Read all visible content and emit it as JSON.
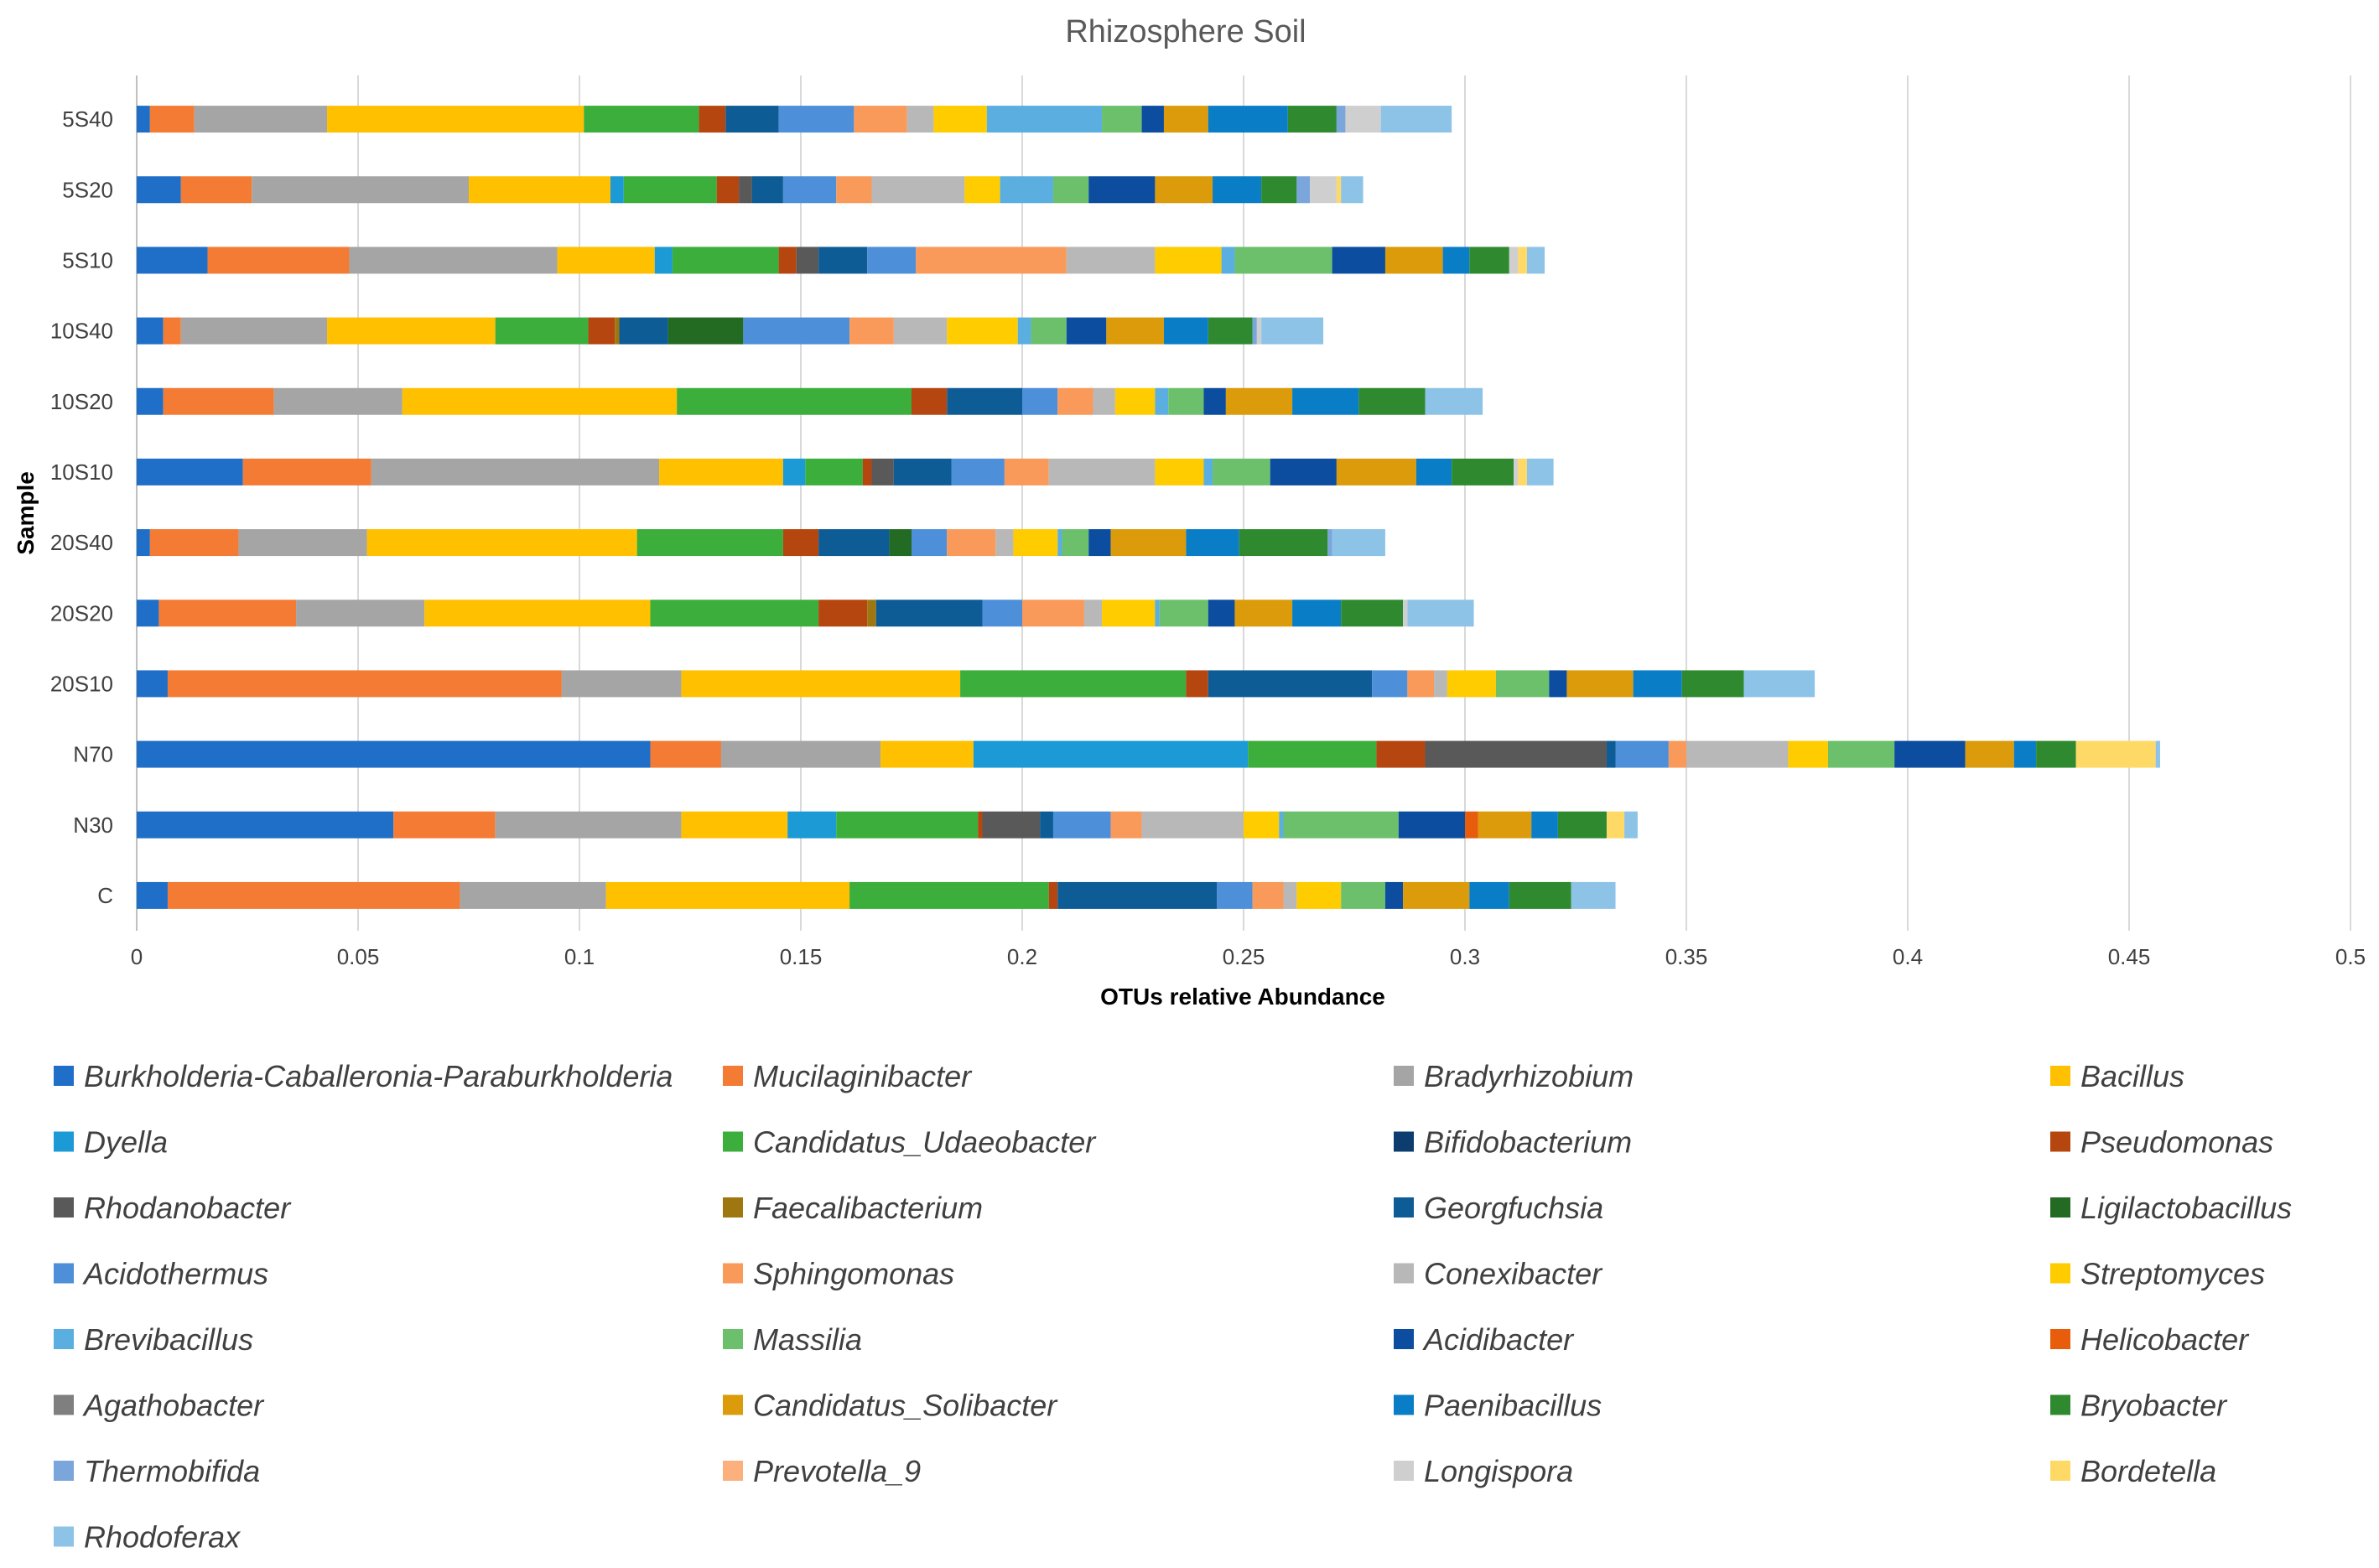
{
  "chart_data": {
    "type": "bar",
    "orientation": "horizontal",
    "stacked": true,
    "title": "Rhizosphere Soil",
    "xlabel": "OTUs relative Abundance",
    "ylabel": "Sample",
    "xlim": [
      0,
      0.5
    ],
    "xticks": [
      "0",
      "0.05",
      "0.1",
      "0.15",
      "0.2",
      "0.25",
      "0.3",
      "0.35",
      "0.4",
      "0.45",
      "0.5"
    ],
    "grid": true,
    "legend_position": "bottom",
    "categories": [
      "5S40",
      "5S20",
      "5S10",
      "10S40",
      "10S20",
      "10S10",
      "20S40",
      "20S20",
      "20S10",
      "N70",
      "N30",
      "C"
    ],
    "series": [
      {
        "name": "Burkholderia-Caballeronia-Paraburkholderia",
        "color": "#1f6fc8",
        "values": [
          0.003,
          0.01,
          0.016,
          0.006,
          0.006,
          0.024,
          0.003,
          0.005,
          0.007,
          0.116,
          0.058,
          0.007
        ]
      },
      {
        "name": "Mucilaginibacter",
        "color": "#f47b34",
        "values": [
          0.01,
          0.016,
          0.032,
          0.004,
          0.025,
          0.029,
          0.02,
          0.031,
          0.089,
          0.016,
          0.023,
          0.066
        ]
      },
      {
        "name": "Bradyrhizobium",
        "color": "#a5a5a5",
        "values": [
          0.03,
          0.049,
          0.047,
          0.033,
          0.029,
          0.065,
          0.029,
          0.029,
          0.027,
          0.036,
          0.042,
          0.033
        ]
      },
      {
        "name": "Bacillus",
        "color": "#ffc000",
        "values": [
          0.058,
          0.032,
          0.022,
          0.038,
          0.062,
          0.028,
          0.061,
          0.051,
          0.063,
          0.021,
          0.024,
          0.055
        ]
      },
      {
        "name": "Dyella",
        "color": "#1b9ad6",
        "values": [
          0,
          0.003,
          0.004,
          0,
          0,
          0.005,
          0,
          0,
          0,
          0.062,
          0.011,
          0
        ]
      },
      {
        "name": "Candidatus_Udaeobacter",
        "color": "#3cae3c",
        "values": [
          0.026,
          0.021,
          0.024,
          0.021,
          0.053,
          0.013,
          0.033,
          0.038,
          0.051,
          0.029,
          0.032,
          0.045
        ]
      },
      {
        "name": "Bifidobacterium",
        "color": "#0d3d6e",
        "values": [
          0,
          0,
          0,
          0,
          0,
          0,
          0,
          0,
          0,
          0,
          0,
          0
        ]
      },
      {
        "name": "Pseudomonas",
        "color": "#b5460f",
        "values": [
          0.006,
          0.005,
          0.004,
          0.006,
          0.008,
          0.002,
          0.008,
          0.011,
          0.005,
          0.011,
          0.001,
          0.002
        ]
      },
      {
        "name": "Rhodanobacter",
        "color": "#595959",
        "values": [
          0,
          0.003,
          0.005,
          0,
          0,
          0.005,
          0,
          0,
          0,
          0.041,
          0.013,
          0
        ]
      },
      {
        "name": "Faecalibacterium",
        "color": "#9e7710",
        "values": [
          0,
          0,
          0,
          0.001,
          0,
          0,
          0,
          0.002,
          0,
          0,
          0,
          0
        ]
      },
      {
        "name": "Georgfuchsia",
        "color": "#0e5c96",
        "values": [
          0.012,
          0.007,
          0.011,
          0.011,
          0.017,
          0.013,
          0.016,
          0.024,
          0.037,
          0.002,
          0.003,
          0.036
        ]
      },
      {
        "name": "Ligilactobacillus",
        "color": "#236b23",
        "values": [
          0,
          0,
          0,
          0.017,
          0,
          0,
          0.005,
          0,
          0,
          0,
          0,
          0
        ]
      },
      {
        "name": "Acidothermus",
        "color": "#4d8fd8",
        "values": [
          0.017,
          0.012,
          0.011,
          0.024,
          0.008,
          0.012,
          0.008,
          0.009,
          0.008,
          0.012,
          0.013,
          0.008
        ]
      },
      {
        "name": "Sphingomonas",
        "color": "#f99a5a",
        "values": [
          0.012,
          0.008,
          0.034,
          0.01,
          0.008,
          0.01,
          0.011,
          0.014,
          0.006,
          0.004,
          0.007,
          0.007
        ]
      },
      {
        "name": "Conexibacter",
        "color": "#b8b8b8",
        "values": [
          0.006,
          0.021,
          0.02,
          0.012,
          0.005,
          0.024,
          0.004,
          0.004,
          0.003,
          0.023,
          0.023,
          0.003
        ]
      },
      {
        "name": "Streptomyces",
        "color": "#ffcc00",
        "values": [
          0.012,
          0.008,
          0.015,
          0.016,
          0.009,
          0.011,
          0.01,
          0.012,
          0.011,
          0.009,
          0.008,
          0.01
        ]
      },
      {
        "name": "Brevibacillus",
        "color": "#5aafe0",
        "values": [
          0.026,
          0.012,
          0.003,
          0.003,
          0.003,
          0.002,
          0.001,
          0.001,
          0,
          0,
          0.001,
          0
        ]
      },
      {
        "name": "Massilia",
        "color": "#6cc06c",
        "values": [
          0.009,
          0.008,
          0.022,
          0.008,
          0.008,
          0.013,
          0.006,
          0.011,
          0.012,
          0.015,
          0.026,
          0.01
        ]
      },
      {
        "name": "Acidibacter",
        "color": "#0c4da0",
        "values": [
          0.005,
          0.015,
          0.012,
          0.009,
          0.005,
          0.015,
          0.005,
          0.006,
          0.004,
          0.016,
          0.015,
          0.004
        ]
      },
      {
        "name": "Helicobacter",
        "color": "#e85d0c",
        "values": [
          0,
          0,
          0,
          0,
          0,
          0,
          0,
          0,
          0,
          0,
          0.003,
          0
        ]
      },
      {
        "name": "Agathobacter",
        "color": "#7f7f7f",
        "values": [
          0,
          0,
          0,
          0,
          0,
          0,
          0,
          0,
          0,
          0,
          0,
          0
        ]
      },
      {
        "name": "Candidatus_Solibacter",
        "color": "#db9b0a",
        "values": [
          0.01,
          0.013,
          0.013,
          0.013,
          0.015,
          0.018,
          0.017,
          0.013,
          0.015,
          0.011,
          0.012,
          0.015
        ]
      },
      {
        "name": "Paenibacillus",
        "color": "#0a7dc7",
        "values": [
          0.018,
          0.011,
          0.006,
          0.01,
          0.015,
          0.008,
          0.012,
          0.011,
          0.011,
          0.005,
          0.006,
          0.009
        ]
      },
      {
        "name": "Bryobacter",
        "color": "#2f8a2f",
        "values": [
          0.011,
          0.008,
          0.009,
          0.01,
          0.015,
          0.014,
          0.02,
          0.014,
          0.014,
          0.009,
          0.011,
          0.014
        ]
      },
      {
        "name": "Thermobifida",
        "color": "#7aa6dc",
        "values": [
          0.002,
          0.003,
          0,
          0.001,
          0,
          0,
          0.001,
          0,
          0,
          0,
          0,
          0
        ]
      },
      {
        "name": "Prevotella_9",
        "color": "#fbb07e",
        "values": [
          0,
          0,
          0,
          0,
          0,
          0,
          0,
          0,
          0,
          0,
          0,
          0
        ]
      },
      {
        "name": "Longispora",
        "color": "#cfcfcf",
        "values": [
          0.008,
          0.006,
          0.002,
          0.001,
          0,
          0.001,
          0,
          0.001,
          0,
          0,
          0,
          0
        ]
      },
      {
        "name": "Bordetella",
        "color": "#ffd966",
        "values": [
          0,
          0.001,
          0.002,
          0,
          0,
          0.002,
          0,
          0,
          0,
          0.018,
          0.004,
          0
        ]
      },
      {
        "name": "Rhodoferax",
        "color": "#8ec3e8",
        "values": [
          0.016,
          0.005,
          0.004,
          0.014,
          0.013,
          0.006,
          0.012,
          0.015,
          0.016,
          0.001,
          0.003,
          0.01
        ]
      }
    ]
  }
}
